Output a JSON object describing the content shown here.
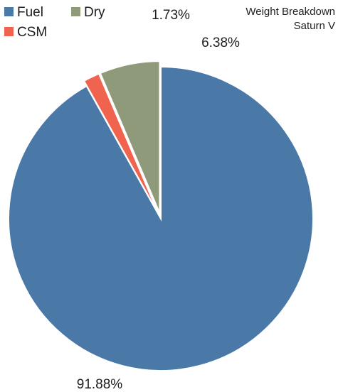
{
  "chart_data": {
    "type": "pie",
    "title": "Weight Breakdown",
    "subtitle": "Saturn V",
    "legend_position": "top-left",
    "slices": [
      {
        "label": "Fuel",
        "value": 91.88,
        "display": "91.88%",
        "color": "#4a79a8",
        "exploded": false
      },
      {
        "label": "CSM",
        "value": 1.73,
        "display": "1.73%",
        "color": "#f0634f",
        "exploded": true
      },
      {
        "label": "Dry",
        "value": 6.38,
        "display": "6.38%",
        "color": "#8f9a7b",
        "exploded": true
      }
    ],
    "legend": [
      {
        "label": "Fuel",
        "color": "#4a79a8"
      },
      {
        "label": "Dry",
        "color": "#8f9a7b"
      },
      {
        "label": "CSM",
        "color": "#f0634f"
      }
    ]
  }
}
